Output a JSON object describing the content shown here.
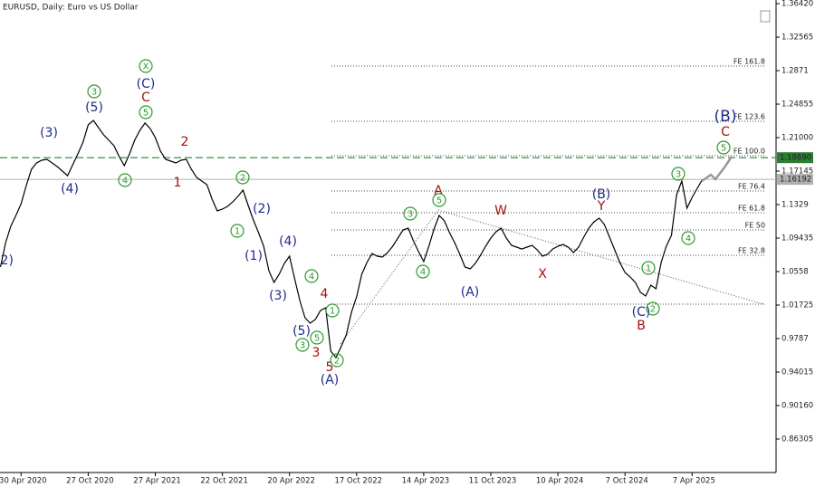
{
  "chart_data": {
    "type": "line",
    "title": "EURUSD, Daily:  Euro vs US Dollar",
    "categories": [
      null,
      null,
      null,
      null,
      "30 Apr 2020",
      null,
      null,
      null,
      null,
      null,
      null,
      null,
      null,
      null,
      null,
      null,
      null,
      "27 Oct 2020",
      null,
      null,
      null,
      null,
      null,
      null,
      null,
      null,
      null,
      null,
      null,
      null,
      "27 Apr 2021",
      null,
      null,
      null,
      null,
      null,
      null,
      null,
      null,
      null,
      null,
      null,
      null,
      "22 Oct 2021",
      null,
      null,
      null,
      null,
      null,
      null,
      null,
      null,
      null,
      null,
      null,
      null,
      "20 Apr 2022",
      null,
      null,
      null,
      null,
      null,
      null,
      null,
      null,
      null,
      null,
      null,
      null,
      "17 Oct 2022",
      null,
      null,
      null,
      null,
      null,
      null,
      null,
      null,
      null,
      null,
      null,
      null,
      "14 Apr 2023",
      null,
      null,
      null,
      null,
      null,
      null,
      null,
      null,
      null,
      null,
      null,
      null,
      "11 Oct 2023",
      null,
      null,
      null,
      null,
      null,
      null,
      null,
      null,
      null,
      null,
      null,
      null,
      "10 Apr 2024",
      null,
      null,
      null,
      null,
      null,
      null,
      null,
      null,
      null,
      null,
      null,
      null,
      "7 Oct 2024",
      null,
      null,
      null,
      null,
      null,
      null,
      null,
      null,
      null,
      null,
      null,
      null,
      "7 Apr 2025",
      null,
      null
    ],
    "values": [
      1.061,
      1.0891,
      1.1079,
      1.1204,
      1.1339,
      1.1548,
      1.1735,
      1.1808,
      1.184,
      1.185,
      1.1808,
      1.1767,
      1.1715,
      1.1662,
      1.1787,
      1.1913,
      1.2048,
      1.2246,
      1.2298,
      1.2215,
      1.2131,
      1.2069,
      1.2006,
      1.1881,
      1.1777,
      1.1913,
      1.2069,
      1.2183,
      1.2267,
      1.2204,
      1.21,
      1.1944,
      1.185,
      1.1829,
      1.1808,
      1.184,
      1.185,
      1.1735,
      1.1642,
      1.16,
      1.1558,
      1.1392,
      1.1256,
      1.1277,
      1.1308,
      1.136,
      1.1423,
      1.1496,
      1.1319,
      1.1152,
      1.1006,
      1.085,
      1.0568,
      1.0433,
      1.0527,
      1.0652,
      1.0735,
      1.0475,
      1.0225,
      1.0027,
      0.9964,
      1.0006,
      1.011,
      1.0141,
      0.9641,
      0.9568,
      0.9693,
      0.9829,
      1.0089,
      1.0266,
      1.0527,
      1.0662,
      1.0766,
      1.0735,
      1.0725,
      1.0777,
      1.085,
      1.0944,
      1.1037,
      1.1058,
      1.0912,
      1.0787,
      1.0673,
      1.085,
      1.1048,
      1.1204,
      1.1142,
      1.1006,
      1.0891,
      1.0756,
      1.061,
      1.0589,
      1.0652,
      1.0745,
      1.085,
      1.0944,
      1.1016,
      1.1058,
      1.0944,
      1.086,
      1.0839,
      1.0818,
      1.0839,
      1.086,
      1.0808,
      1.0735,
      1.0756,
      1.0818,
      1.085,
      1.0871,
      1.0839,
      1.0777,
      1.0839,
      1.0954,
      1.1058,
      1.1131,
      1.1173,
      1.11,
      1.0954,
      1.0808,
      1.0662,
      1.0548,
      1.0496,
      1.0433,
      1.0318,
      1.0277,
      1.0402,
      1.036,
      1.0662,
      1.085,
      1.0975,
      1.1444,
      1.16,
      1.1287,
      1.1412,
      1.1517,
      1.1619
    ],
    "color": "#000000",
    "ylim": [
      0.8245,
      1.3684
    ],
    "yticks": [
      {
        "value": 1.3642,
        "label": "1.36420"
      },
      1.32565,
      1.2871,
      1.24855,
      {
        "value": 1.21,
        "label": "1.21000"
      },
      1.17145,
      1.1329,
      1.09435,
      1.0558,
      1.01725,
      0.9787,
      0.94015,
      {
        "value": 0.9016,
        "label": "0.90160"
      },
      0.86305
    ],
    "price_labels": [
      {
        "value": 1.1869,
        "label": "1.18690",
        "color": "#2e7d32"
      },
      {
        "value": 1.16192,
        "label": "1.16192",
        "color": "#b0b0b0"
      }
    ],
    "fib_levels": [
      "FE 161.8",
      "FE 123.6",
      "FE 100.0",
      "FE 76.4",
      "FE 61.8",
      "FE 50",
      "FE 32.8"
    ],
    "annotations": [
      {
        "text": "(2)",
        "color": "#1f2a8c"
      },
      {
        "text": "(3)",
        "color": "#1f2a8c"
      },
      {
        "text": "(4)",
        "color": "#1f2a8c"
      },
      {
        "text": "(5)",
        "color": "#1f2a8c"
      },
      {
        "text": "3",
        "color": "#2e9a2e",
        "circled": true
      },
      {
        "text": "4",
        "color": "#2e9a2e",
        "circled": true
      },
      {
        "text": "X",
        "color": "#2e9a2e",
        "circled": true
      },
      {
        "text": "(C)",
        "color": "#1f2a8c"
      },
      {
        "text": "C",
        "color": "#a01010"
      },
      {
        "text": "5",
        "color": "#2e9a2e",
        "circled": true
      },
      {
        "text": "2",
        "color": "#a01010"
      },
      {
        "text": "1",
        "color": "#a01010"
      },
      {
        "text": "2",
        "color": "#2e9a2e",
        "circled": true
      },
      {
        "text": "(2)",
        "color": "#1f2a8c"
      },
      {
        "text": "1",
        "color": "#2e9a2e",
        "circled": true
      },
      {
        "text": "(1)",
        "color": "#1f2a8c"
      },
      {
        "text": "(4)",
        "color": "#1f2a8c"
      },
      {
        "text": "4",
        "color": "#2e9a2e",
        "circled": true
      },
      {
        "text": "(3)",
        "color": "#1f2a8c"
      },
      {
        "text": "4",
        "color": "#a01010"
      },
      {
        "text": "1",
        "color": "#2e9a2e",
        "circled": true
      },
      {
        "text": "(5)",
        "color": "#1f2a8c"
      },
      {
        "text": "5",
        "color": "#2e9a2e",
        "circled": true
      },
      {
        "text": "3",
        "color": "#2e9a2e",
        "circled": true
      },
      {
        "text": "3",
        "color": "#a01010"
      },
      {
        "text": "5",
        "color": "#a01010"
      },
      {
        "text": "2",
        "color": "#2e9a2e",
        "circled": true
      },
      {
        "text": "(A)",
        "color": "#1f2a8c"
      },
      {
        "text": "A",
        "color": "#a01010"
      },
      {
        "text": "5",
        "color": "#2e9a2e",
        "circled": true
      },
      {
        "text": "3",
        "color": "#2e9a2e",
        "circled": true
      },
      {
        "text": "4",
        "color": "#2e9a2e",
        "circled": true
      },
      {
        "text": "(A)",
        "color": "#1f2a8c"
      },
      {
        "text": "W",
        "color": "#a01010"
      },
      {
        "text": "X",
        "color": "#a01010"
      },
      {
        "text": "(B)",
        "color": "#1f2a8c"
      },
      {
        "text": "Y",
        "color": "#a01010"
      },
      {
        "text": "1",
        "color": "#2e9a2e",
        "circled": true
      },
      {
        "text": "(C)",
        "color": "#1f2a8c"
      },
      {
        "text": "2",
        "color": "#2e9a2e",
        "circled": true
      },
      {
        "text": "B",
        "color": "#a01010"
      },
      {
        "text": "3",
        "color": "#2e9a2e",
        "circled": true
      },
      {
        "text": "4",
        "color": "#2e9a2e",
        "circled": true
      },
      {
        "text": "5",
        "color": "#2e9a2e",
        "circled": true
      },
      {
        "text": "C",
        "color": "#a01010"
      },
      {
        "text": "(B)",
        "color": "#1f2a8c"
      }
    ]
  }
}
